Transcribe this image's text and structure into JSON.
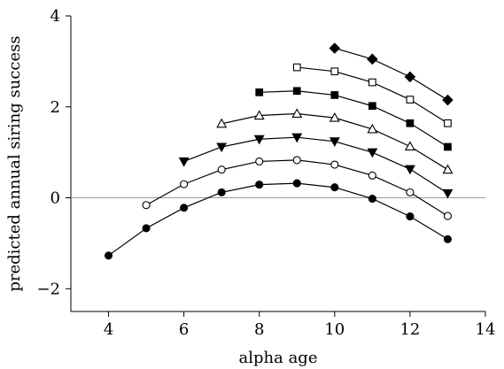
{
  "chart_data": {
    "type": "line",
    "title": "",
    "xlabel": "alpha age",
    "ylabel": "predicted annual siring success",
    "xlim": [
      3,
      14
    ],
    "ylim": [
      -2.5,
      4
    ],
    "xticks": [
      4,
      6,
      8,
      10,
      12,
      14
    ],
    "yticks": [
      -2,
      0,
      2,
      4
    ],
    "xtick_labels": [
      "4",
      "6",
      "8",
      "10",
      "12",
      "14"
    ],
    "ytick_labels": [
      "−2",
      "0",
      "2",
      "4"
    ],
    "reference_line": {
      "y": 0,
      "color": "#9a9a9a"
    },
    "grid": false,
    "legend": "none",
    "series": [
      {
        "marker": "filled-circle",
        "x": [
          4,
          5,
          6,
          7,
          8,
          9,
          10,
          11,
          12,
          13
        ],
        "y": [
          -1.27,
          -0.67,
          -0.22,
          0.12,
          0.29,
          0.32,
          0.23,
          -0.02,
          -0.41,
          -0.91
        ]
      },
      {
        "marker": "open-circle",
        "x": [
          5,
          6,
          7,
          8,
          9,
          10,
          11,
          12,
          13
        ],
        "y": [
          -0.16,
          0.3,
          0.62,
          0.8,
          0.83,
          0.73,
          0.49,
          0.12,
          -0.4
        ]
      },
      {
        "marker": "filled-down-triangle",
        "x": [
          6,
          7,
          8,
          9,
          10,
          11,
          12,
          13
        ],
        "y": [
          0.8,
          1.12,
          1.29,
          1.33,
          1.24,
          1.0,
          0.63,
          0.1
        ]
      },
      {
        "marker": "open-up-triangle",
        "x": [
          7,
          8,
          9,
          10,
          11,
          12,
          13
        ],
        "y": [
          1.63,
          1.81,
          1.85,
          1.76,
          1.51,
          1.13,
          0.62
        ]
      },
      {
        "marker": "filled-square",
        "x": [
          8,
          9,
          10,
          11,
          12,
          13
        ],
        "y": [
          2.32,
          2.35,
          2.26,
          2.02,
          1.64,
          1.12
        ]
      },
      {
        "marker": "open-square",
        "x": [
          9,
          10,
          11,
          12,
          13
        ],
        "y": [
          2.87,
          2.78,
          2.54,
          2.16,
          1.64
        ]
      },
      {
        "marker": "filled-diamond",
        "x": [
          10,
          11,
          12,
          13
        ],
        "y": [
          3.29,
          3.05,
          2.66,
          2.15
        ]
      }
    ]
  }
}
